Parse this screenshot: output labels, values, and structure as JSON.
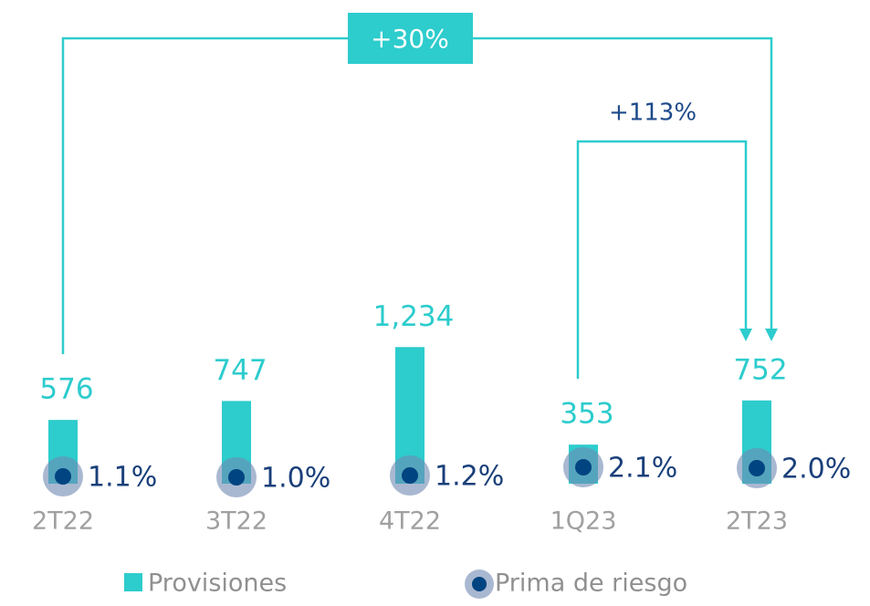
{
  "chart_data": {
    "type": "bar",
    "categories": [
      "2T22",
      "3T22",
      "4T22",
      "1Q23",
      "2T23"
    ],
    "series": [
      {
        "name": "Provisiones",
        "color": "#2dcccd",
        "values": [
          576,
          747,
          1234,
          353,
          752
        ],
        "value_labels": [
          "576",
          "747",
          "1,234",
          "353",
          "752"
        ]
      },
      {
        "name": "Prima de riesgo",
        "color": "#004481",
        "axis": "y2",
        "values": [
          1.1,
          1.0,
          1.2,
          2.1,
          2.0
        ],
        "value_labels": [
          "1.1%",
          "1.0%",
          "1.2%",
          "2.1%",
          "2.0%"
        ]
      }
    ],
    "ylim": [
      0,
      1500
    ],
    "y2lim": [
      0.3,
      18.5
    ],
    "annotations": [
      "+30%",
      "+113%"
    ]
  }
}
